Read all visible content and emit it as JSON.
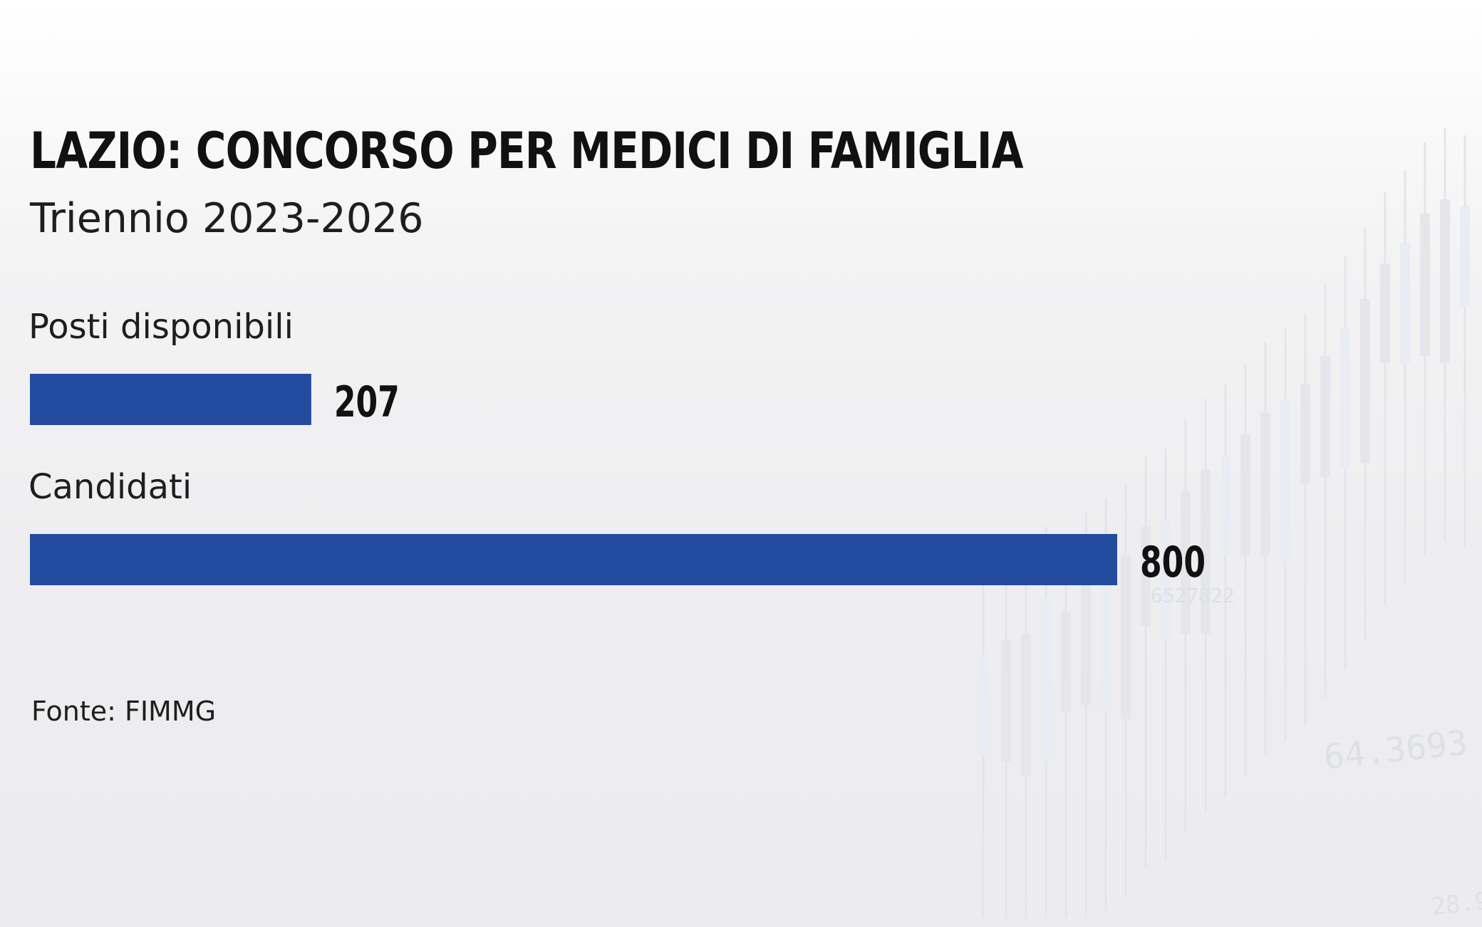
{
  "header": {
    "title": "LAZIO: CONCORSO PER MEDICI DI FAMIGLIA",
    "subtitle": "Triennio 2023-2026"
  },
  "footer": {
    "source": "Fonte: FIMMG"
  },
  "colors": {
    "bar": "#234c9f",
    "text": "#111111",
    "background": "#eeeef0"
  },
  "chart_data": {
    "type": "bar",
    "orientation": "horizontal",
    "title": "LAZIO: CONCORSO PER MEDICI DI FAMIGLIA",
    "subtitle": "Triennio 2023-2026",
    "categories": [
      "Posti disponibili",
      "Candidati"
    ],
    "values": [
      207,
      800
    ],
    "value_labels": [
      "207",
      "800"
    ],
    "xlim": [
      0,
      800
    ],
    "grid": false,
    "legend": "none"
  }
}
